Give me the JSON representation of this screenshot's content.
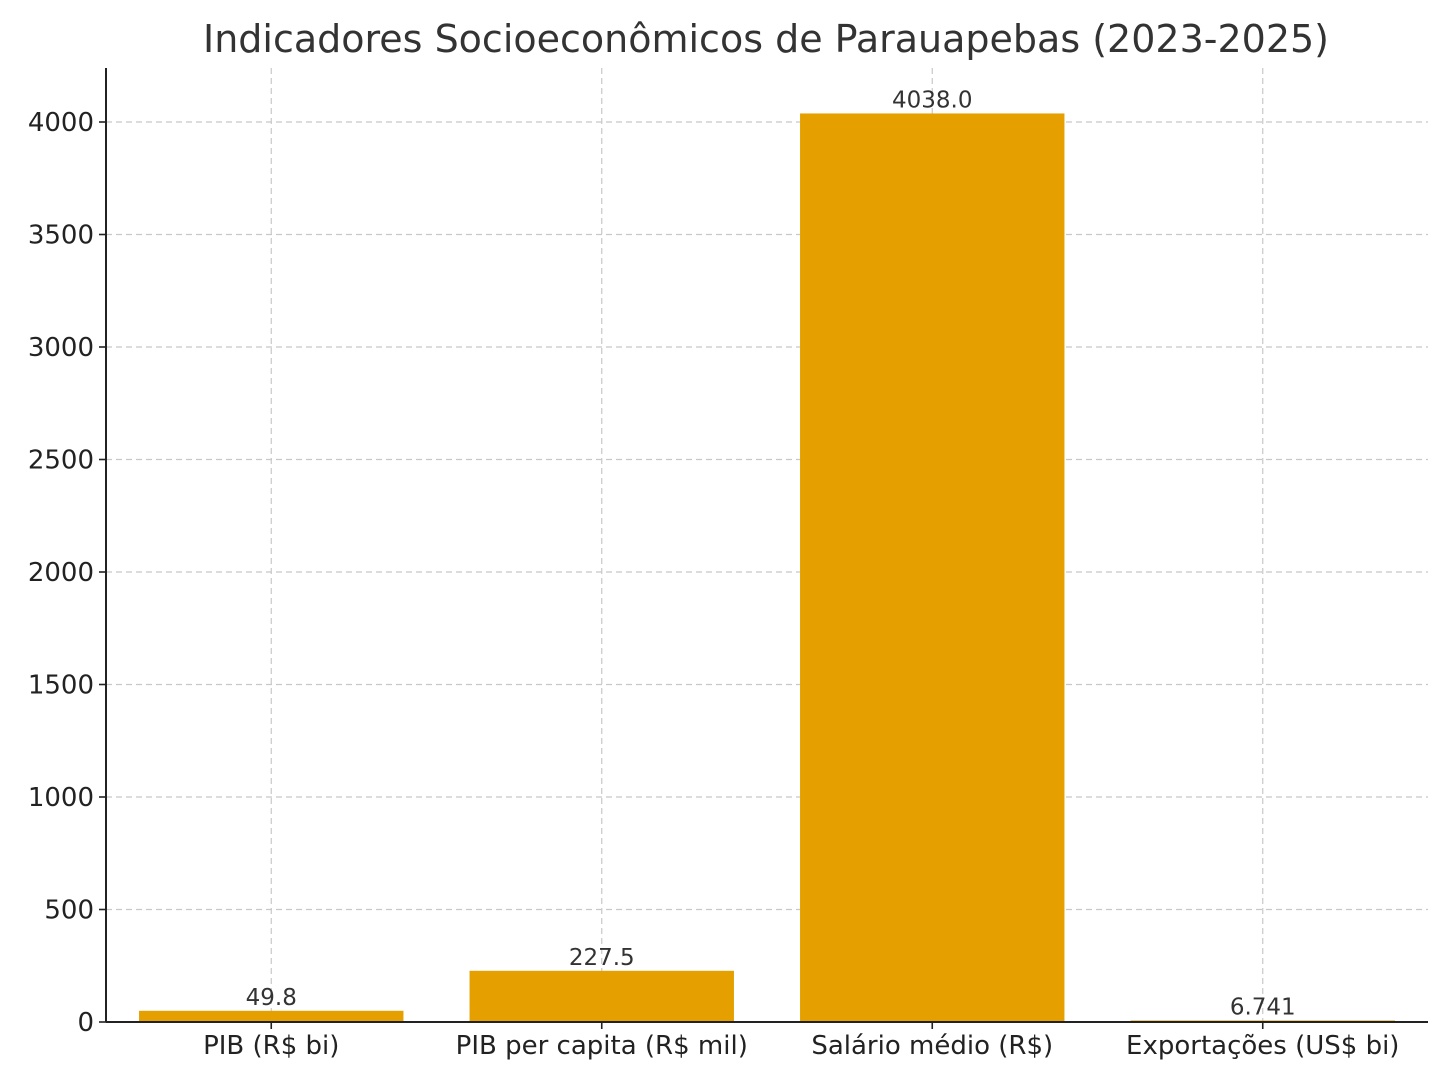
{
  "chart_data": {
    "type": "bar",
    "title": "Indicadores Socioeconômicos de Parauapebas (2023-2025)",
    "xlabel": "",
    "ylabel": "",
    "categories": [
      "PIB (R$ bi)",
      "PIB per capita (R$ mil)",
      "Salário médio (R$)",
      "Exportações (US$ bi)"
    ],
    "values": [
      49.8,
      227.5,
      4038.0,
      6.741
    ],
    "value_labels": [
      "49.8",
      "227.5",
      "4038.0",
      "6.741"
    ],
    "ylim": [
      0,
      4240
    ],
    "yticks": [
      0,
      500,
      1000,
      1500,
      2000,
      2500,
      3000,
      3500,
      4000
    ],
    "ytick_labels": [
      "0",
      "500",
      "1000",
      "1500",
      "2000",
      "2500",
      "3000",
      "3500",
      "4000"
    ],
    "grid": true,
    "bar_color": "#e5a000",
    "legend": "none"
  }
}
